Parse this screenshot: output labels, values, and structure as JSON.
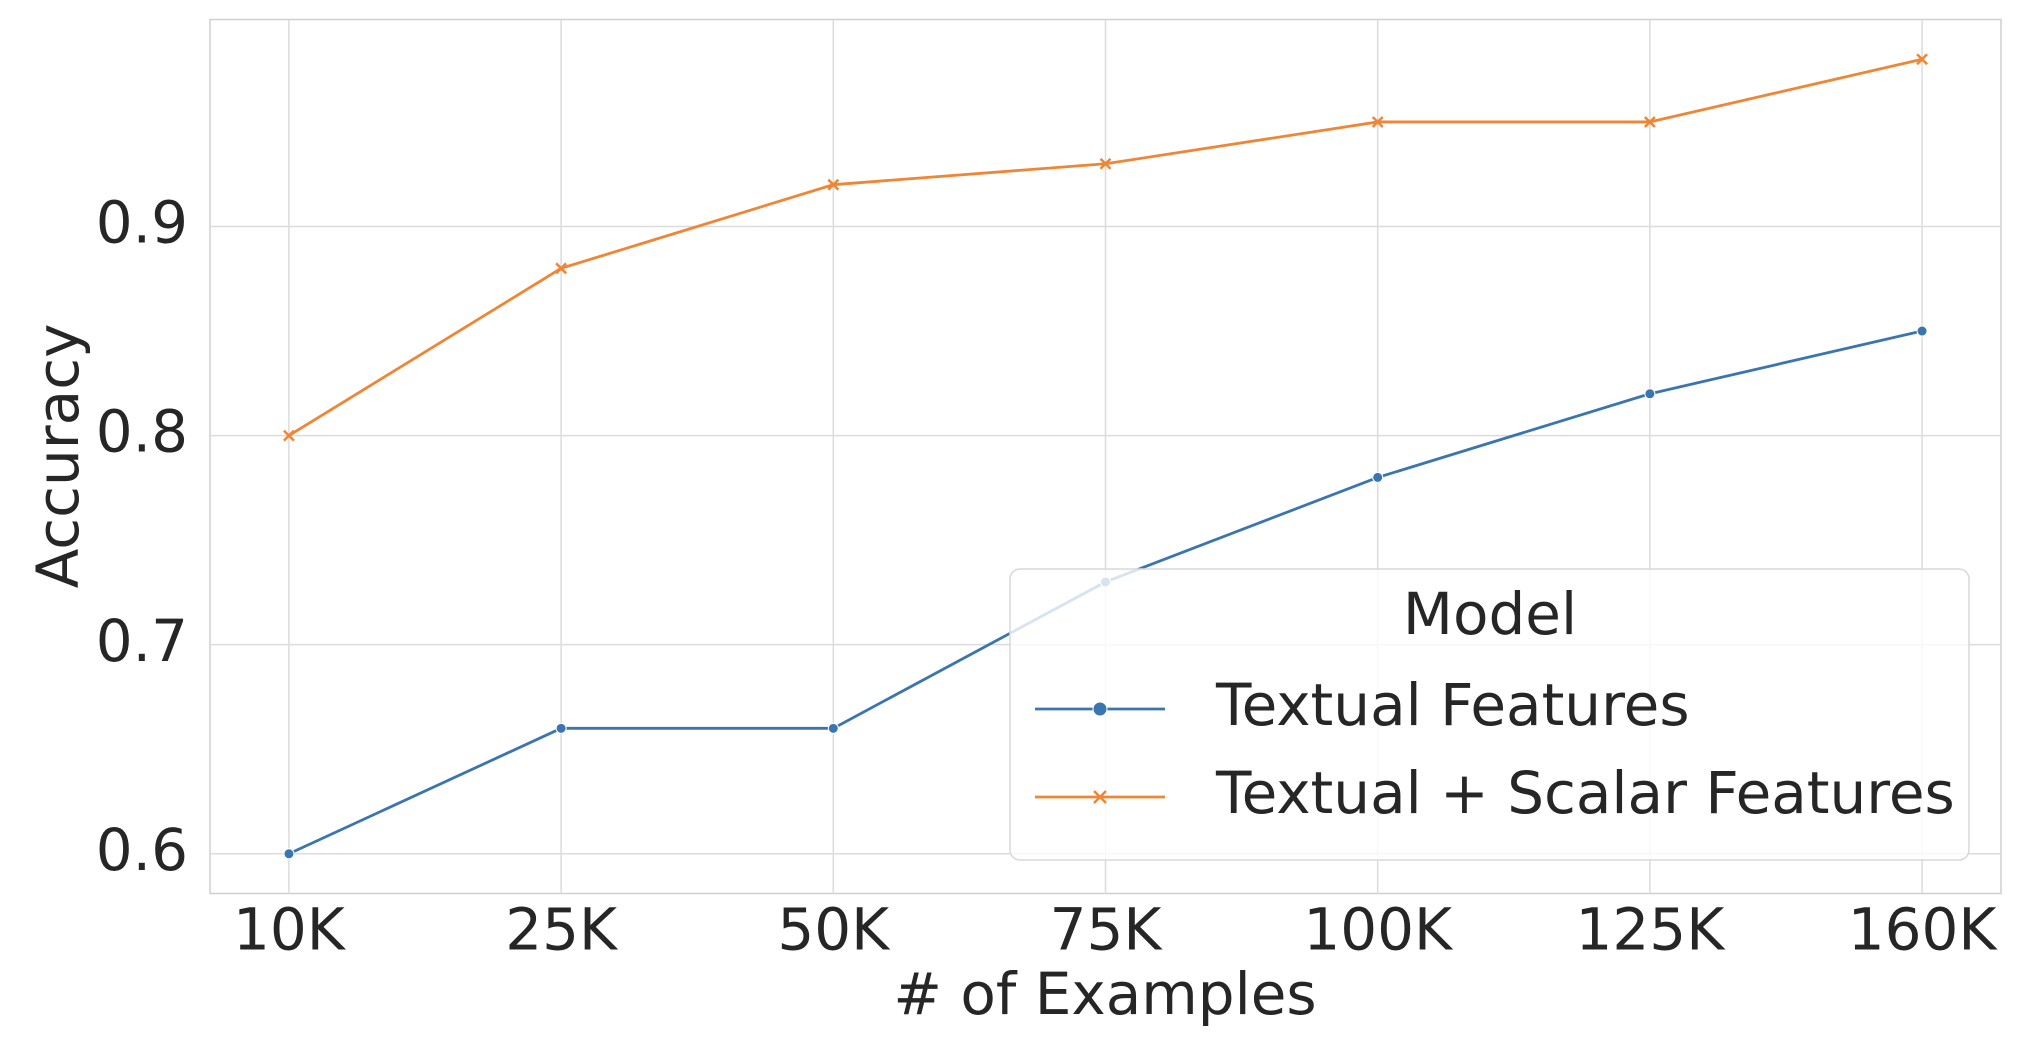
{
  "chart_data": {
    "type": "line",
    "x_label": "# of Examples",
    "y_label": "Accuracy",
    "categories": [
      "10K",
      "25K",
      "50K",
      "75K",
      "100K",
      "125K",
      "160K"
    ],
    "series": [
      {
        "name": "Textual Features",
        "color": "#3b75af",
        "marker": "circle",
        "values": [
          0.6,
          0.66,
          0.66,
          0.73,
          0.78,
          0.82,
          0.85
        ]
      },
      {
        "name": "Textual + Scalar Features",
        "color": "#ef8636",
        "marker": "x",
        "values": [
          0.8,
          0.88,
          0.92,
          0.93,
          0.95,
          0.95,
          0.98
        ]
      }
    ],
    "ylim": [
      0.581,
      0.999
    ],
    "yticks": [
      0.6,
      0.7,
      0.8,
      0.9
    ],
    "grid": true,
    "legend_title": "Model",
    "legend_position": "lower right"
  }
}
